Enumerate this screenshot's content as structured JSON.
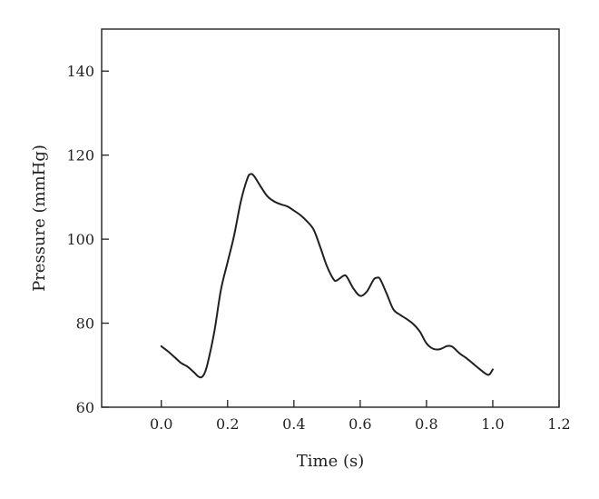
{
  "chart_data": {
    "type": "line",
    "title": "",
    "xlabel": "Time (s)",
    "ylabel": "Pressure (mmHg)",
    "xlim": [
      -0.18,
      1.2
    ],
    "ylim": [
      60,
      150
    ],
    "x_ticks": [
      0.0,
      0.2,
      0.4,
      0.6,
      0.8,
      1.0,
      1.2
    ],
    "x_tick_labels": [
      "0.0",
      "0.2",
      "0.4",
      "0.6",
      "0.8",
      "1.0",
      "1.2"
    ],
    "y_ticks": [
      60,
      80,
      100,
      120,
      140
    ],
    "y_tick_labels": [
      "60",
      "80",
      "100",
      "120",
      "140"
    ],
    "grid": false,
    "legend": "none",
    "series": [
      {
        "color": "#231f20",
        "x": [
          0.0,
          0.02,
          0.04,
          0.06,
          0.08,
          0.1,
          0.11,
          0.12,
          0.13,
          0.14,
          0.16,
          0.18,
          0.2,
          0.22,
          0.24,
          0.26,
          0.27,
          0.28,
          0.3,
          0.32,
          0.34,
          0.36,
          0.38,
          0.4,
          0.42,
          0.44,
          0.46,
          0.48,
          0.5,
          0.52,
          0.53,
          0.55,
          0.56,
          0.58,
          0.6,
          0.62,
          0.64,
          0.65,
          0.66,
          0.68,
          0.7,
          0.72,
          0.74,
          0.76,
          0.78,
          0.8,
          0.82,
          0.84,
          0.86,
          0.87,
          0.88,
          0.9,
          0.92,
          0.94,
          0.96,
          0.98,
          0.99,
          1.0
        ],
        "values": [
          74.5,
          73.3,
          71.9,
          70.5,
          69.6,
          68.2,
          67.4,
          67.1,
          68.0,
          70.5,
          78.0,
          88.0,
          94.5,
          101.0,
          109.0,
          114.5,
          115.5,
          115.0,
          112.5,
          110.2,
          109.0,
          108.3,
          107.8,
          106.8,
          105.7,
          104.2,
          102.2,
          98.0,
          93.5,
          90.4,
          90.2,
          91.3,
          91.0,
          88.2,
          86.5,
          87.5,
          90.3,
          90.8,
          90.5,
          87.0,
          83.3,
          82.0,
          81.0,
          79.8,
          78.0,
          75.2,
          73.9,
          73.8,
          74.5,
          74.6,
          74.3,
          72.8,
          71.7,
          70.4,
          69.1,
          67.9,
          67.8,
          69.0
        ]
      }
    ]
  }
}
